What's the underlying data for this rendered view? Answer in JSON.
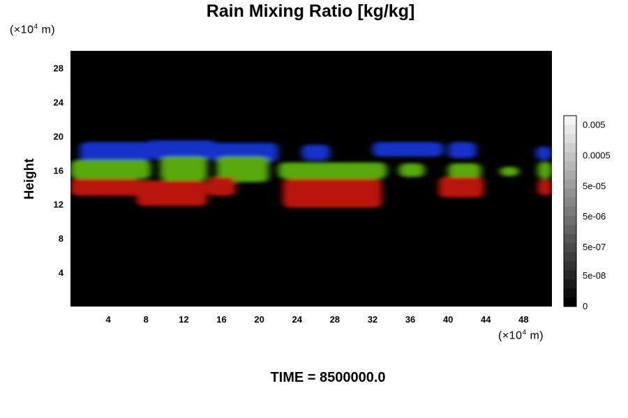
{
  "chart_data": {
    "type": "heatmap",
    "title": "Rain Mixing Ratio [kg/kg]",
    "ylabel": "Height",
    "xunit": "(×10",
    "xunit_exp": "4",
    "xunit_tail": " m)",
    "yunit": "(×10",
    "yunit_exp": "4",
    "yunit_tail": " m)",
    "footer": "TIME = 8500000.0",
    "xlim": [
      0,
      51
    ],
    "ylim": [
      0,
      30
    ],
    "xticks": [
      "4",
      "8",
      "12",
      "16",
      "20",
      "24",
      "28",
      "32",
      "36",
      "40",
      "44",
      "48"
    ],
    "xtick_values": [
      4,
      8,
      12,
      16,
      20,
      24,
      28,
      32,
      36,
      40,
      44,
      48
    ],
    "yticks": [
      "4",
      "8",
      "12",
      "16",
      "20",
      "24",
      "28"
    ],
    "ytick_values": [
      4,
      8,
      12,
      16,
      20,
      24,
      28
    ],
    "background_color": "#000000",
    "colorbar": {
      "labels": [
        "0.005",
        "0.0005",
        "5e-05",
        "5e-06",
        "5e-07",
        "5e-08",
        "0"
      ],
      "label_fractions": [
        0.95,
        0.79,
        0.63,
        0.47,
        0.31,
        0.16,
        0.0
      ],
      "levels": 21,
      "low_color": "#000000",
      "high_color": "#f4f4f4"
    },
    "bands": [
      {
        "name": "upper",
        "color": "#1530c8",
        "blobs": [
          {
            "x0": 1.0,
            "x1": 8.5,
            "y0": 17.0,
            "y1": 19.3
          },
          {
            "x0": 8.0,
            "x1": 15.5,
            "y0": 17.3,
            "y1": 19.5
          },
          {
            "x0": 15.0,
            "x1": 22.0,
            "y0": 17.0,
            "y1": 19.2
          },
          {
            "x0": 24.5,
            "x1": 27.5,
            "y0": 17.2,
            "y1": 19.0
          },
          {
            "x0": 32.0,
            "x1": 39.5,
            "y0": 17.6,
            "y1": 19.3
          },
          {
            "x0": 40.0,
            "x1": 43.0,
            "y0": 17.4,
            "y1": 19.3
          },
          {
            "x0": 49.3,
            "x1": 51.0,
            "y0": 17.2,
            "y1": 18.8
          }
        ]
      },
      {
        "name": "middle",
        "color": "#56a80e",
        "blobs": [
          {
            "x0": 0.0,
            "x1": 8.5,
            "y0": 15.0,
            "y1": 17.2
          },
          {
            "x0": 9.5,
            "x1": 14.5,
            "y0": 14.8,
            "y1": 17.6
          },
          {
            "x0": 15.5,
            "x1": 21.0,
            "y0": 14.6,
            "y1": 17.6
          },
          {
            "x0": 22.0,
            "x1": 33.5,
            "y0": 15.0,
            "y1": 16.9
          },
          {
            "x0": 34.8,
            "x1": 37.5,
            "y0": 15.2,
            "y1": 16.8
          },
          {
            "x0": 40.0,
            "x1": 43.5,
            "y0": 15.0,
            "y1": 16.8
          },
          {
            "x0": 45.5,
            "x1": 47.5,
            "y0": 15.3,
            "y1": 16.4
          },
          {
            "x0": 49.5,
            "x1": 51.0,
            "y0": 15.0,
            "y1": 17.0
          }
        ]
      },
      {
        "name": "lower",
        "color": "#b8120e",
        "blobs": [
          {
            "x0": 0.0,
            "x1": 7.5,
            "y0": 13.0,
            "y1": 15.0
          },
          {
            "x0": 7.0,
            "x1": 14.5,
            "y0": 11.8,
            "y1": 14.8
          },
          {
            "x0": 14.5,
            "x1": 17.5,
            "y0": 13.0,
            "y1": 15.2
          },
          {
            "x0": 22.5,
            "x1": 33.0,
            "y0": 11.6,
            "y1": 15.0
          },
          {
            "x0": 39.0,
            "x1": 43.8,
            "y0": 12.8,
            "y1": 15.2
          },
          {
            "x0": 49.5,
            "x1": 51.0,
            "y0": 13.0,
            "y1": 15.0
          }
        ]
      }
    ]
  }
}
